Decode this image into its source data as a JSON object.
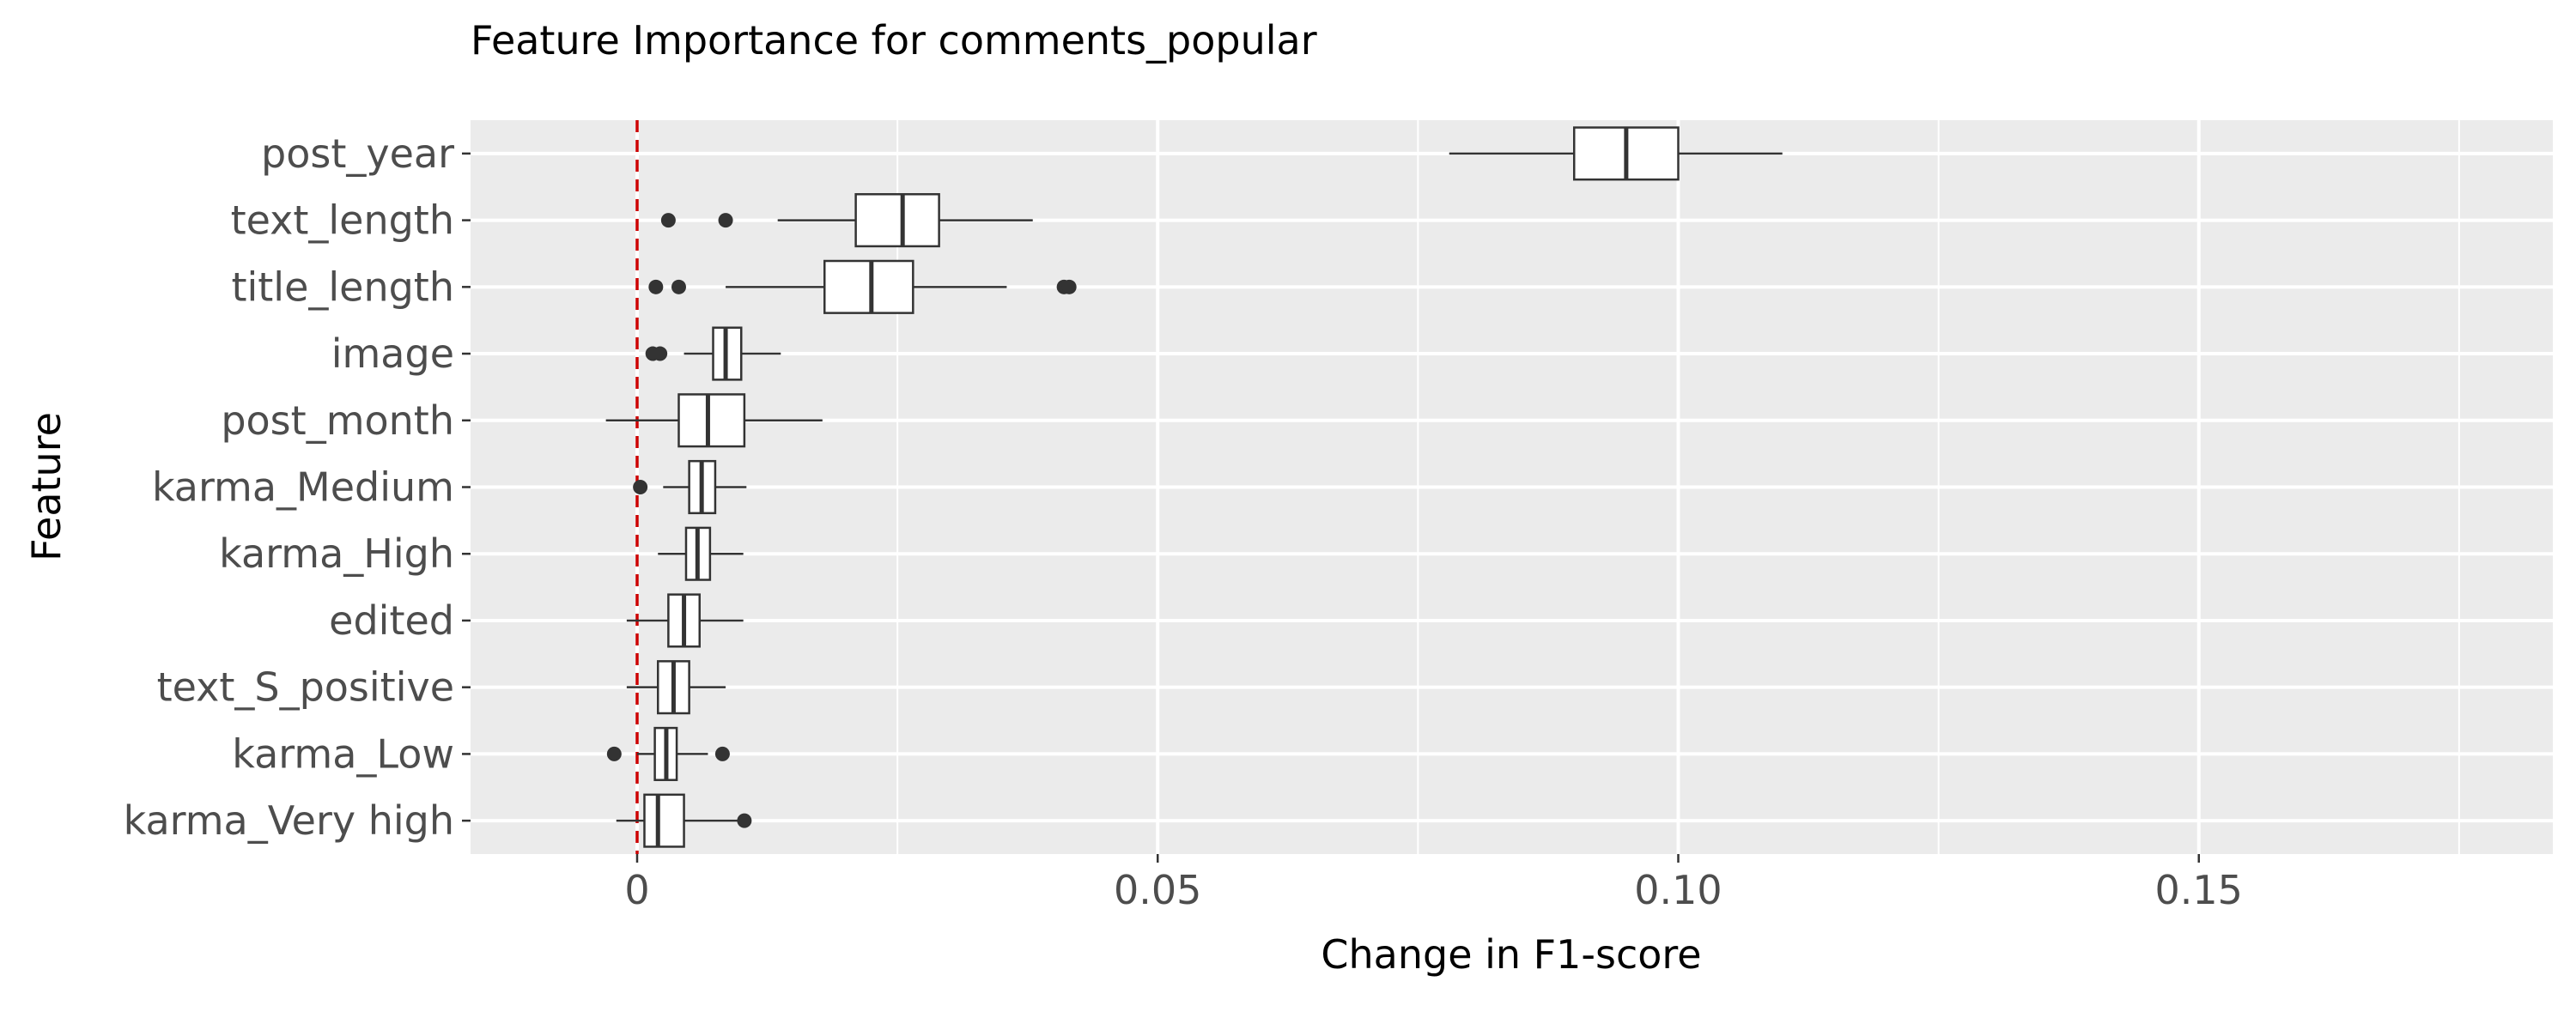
{
  "chart_data": {
    "type": "boxplot",
    "orientation": "horizontal",
    "title": "Feature Importance for comments_popular",
    "xlabel": "Change in F1-score",
    "ylabel": "Feature",
    "xlim": [
      -0.016,
      0.184
    ],
    "x_ticks": [
      0,
      0.05,
      0.1,
      0.15
    ],
    "x_tick_labels": [
      "0",
      "0.05",
      "0.10",
      "0.15"
    ],
    "grid": true,
    "panel_background": "#ebebeb",
    "reference_line": {
      "x": 0,
      "color": "#cc0000",
      "style": "dashed"
    },
    "categories": [
      "post_year",
      "text_length",
      "title_length",
      "image",
      "post_month",
      "karma_Medium",
      "karma_High",
      "edited",
      "text_S_positive",
      "karma_Low",
      "karma_Very high"
    ],
    "boxes": [
      {
        "feature": "post_year",
        "whisker_low": 0.078,
        "q1": 0.09,
        "median": 0.095,
        "q3": 0.1,
        "whisker_high": 0.11,
        "outliers": []
      },
      {
        "feature": "text_length",
        "whisker_low": 0.0135,
        "q1": 0.021,
        "median": 0.0255,
        "q3": 0.029,
        "whisker_high": 0.038,
        "outliers": [
          0.003,
          0.0085
        ]
      },
      {
        "feature": "title_length",
        "whisker_low": 0.0085,
        "q1": 0.018,
        "median": 0.0225,
        "q3": 0.0265,
        "whisker_high": 0.0355,
        "outliers": [
          0.0018,
          0.004,
          0.041,
          0.0415
        ]
      },
      {
        "feature": "image",
        "whisker_low": 0.0045,
        "q1": 0.0073,
        "median": 0.0085,
        "q3": 0.01,
        "whisker_high": 0.0138,
        "outliers": [
          0.0015,
          0.0022
        ]
      },
      {
        "feature": "post_month",
        "whisker_low": -0.003,
        "q1": 0.004,
        "median": 0.0068,
        "q3": 0.0103,
        "whisker_high": 0.0178,
        "outliers": []
      },
      {
        "feature": "karma_Medium",
        "whisker_low": 0.0025,
        "q1": 0.005,
        "median": 0.0062,
        "q3": 0.0075,
        "whisker_high": 0.0105,
        "outliers": [
          0.0003
        ]
      },
      {
        "feature": "karma_High",
        "whisker_low": 0.002,
        "q1": 0.0047,
        "median": 0.0058,
        "q3": 0.007,
        "whisker_high": 0.0102,
        "outliers": []
      },
      {
        "feature": "edited",
        "whisker_low": -0.001,
        "q1": 0.003,
        "median": 0.0045,
        "q3": 0.006,
        "whisker_high": 0.0102,
        "outliers": []
      },
      {
        "feature": "text_S_positive",
        "whisker_low": -0.001,
        "q1": 0.002,
        "median": 0.0035,
        "q3": 0.005,
        "whisker_high": 0.0085,
        "outliers": []
      },
      {
        "feature": "karma_Low",
        "whisker_low": 0.0,
        "q1": 0.0017,
        "median": 0.0028,
        "q3": 0.0038,
        "whisker_high": 0.0068,
        "outliers": [
          -0.0022,
          0.0082
        ]
      },
      {
        "feature": "karma_Very high",
        "whisker_low": -0.002,
        "q1": 0.0007,
        "median": 0.002,
        "q3": 0.0045,
        "whisker_high": 0.0097,
        "outliers": [
          0.0103
        ]
      }
    ]
  }
}
